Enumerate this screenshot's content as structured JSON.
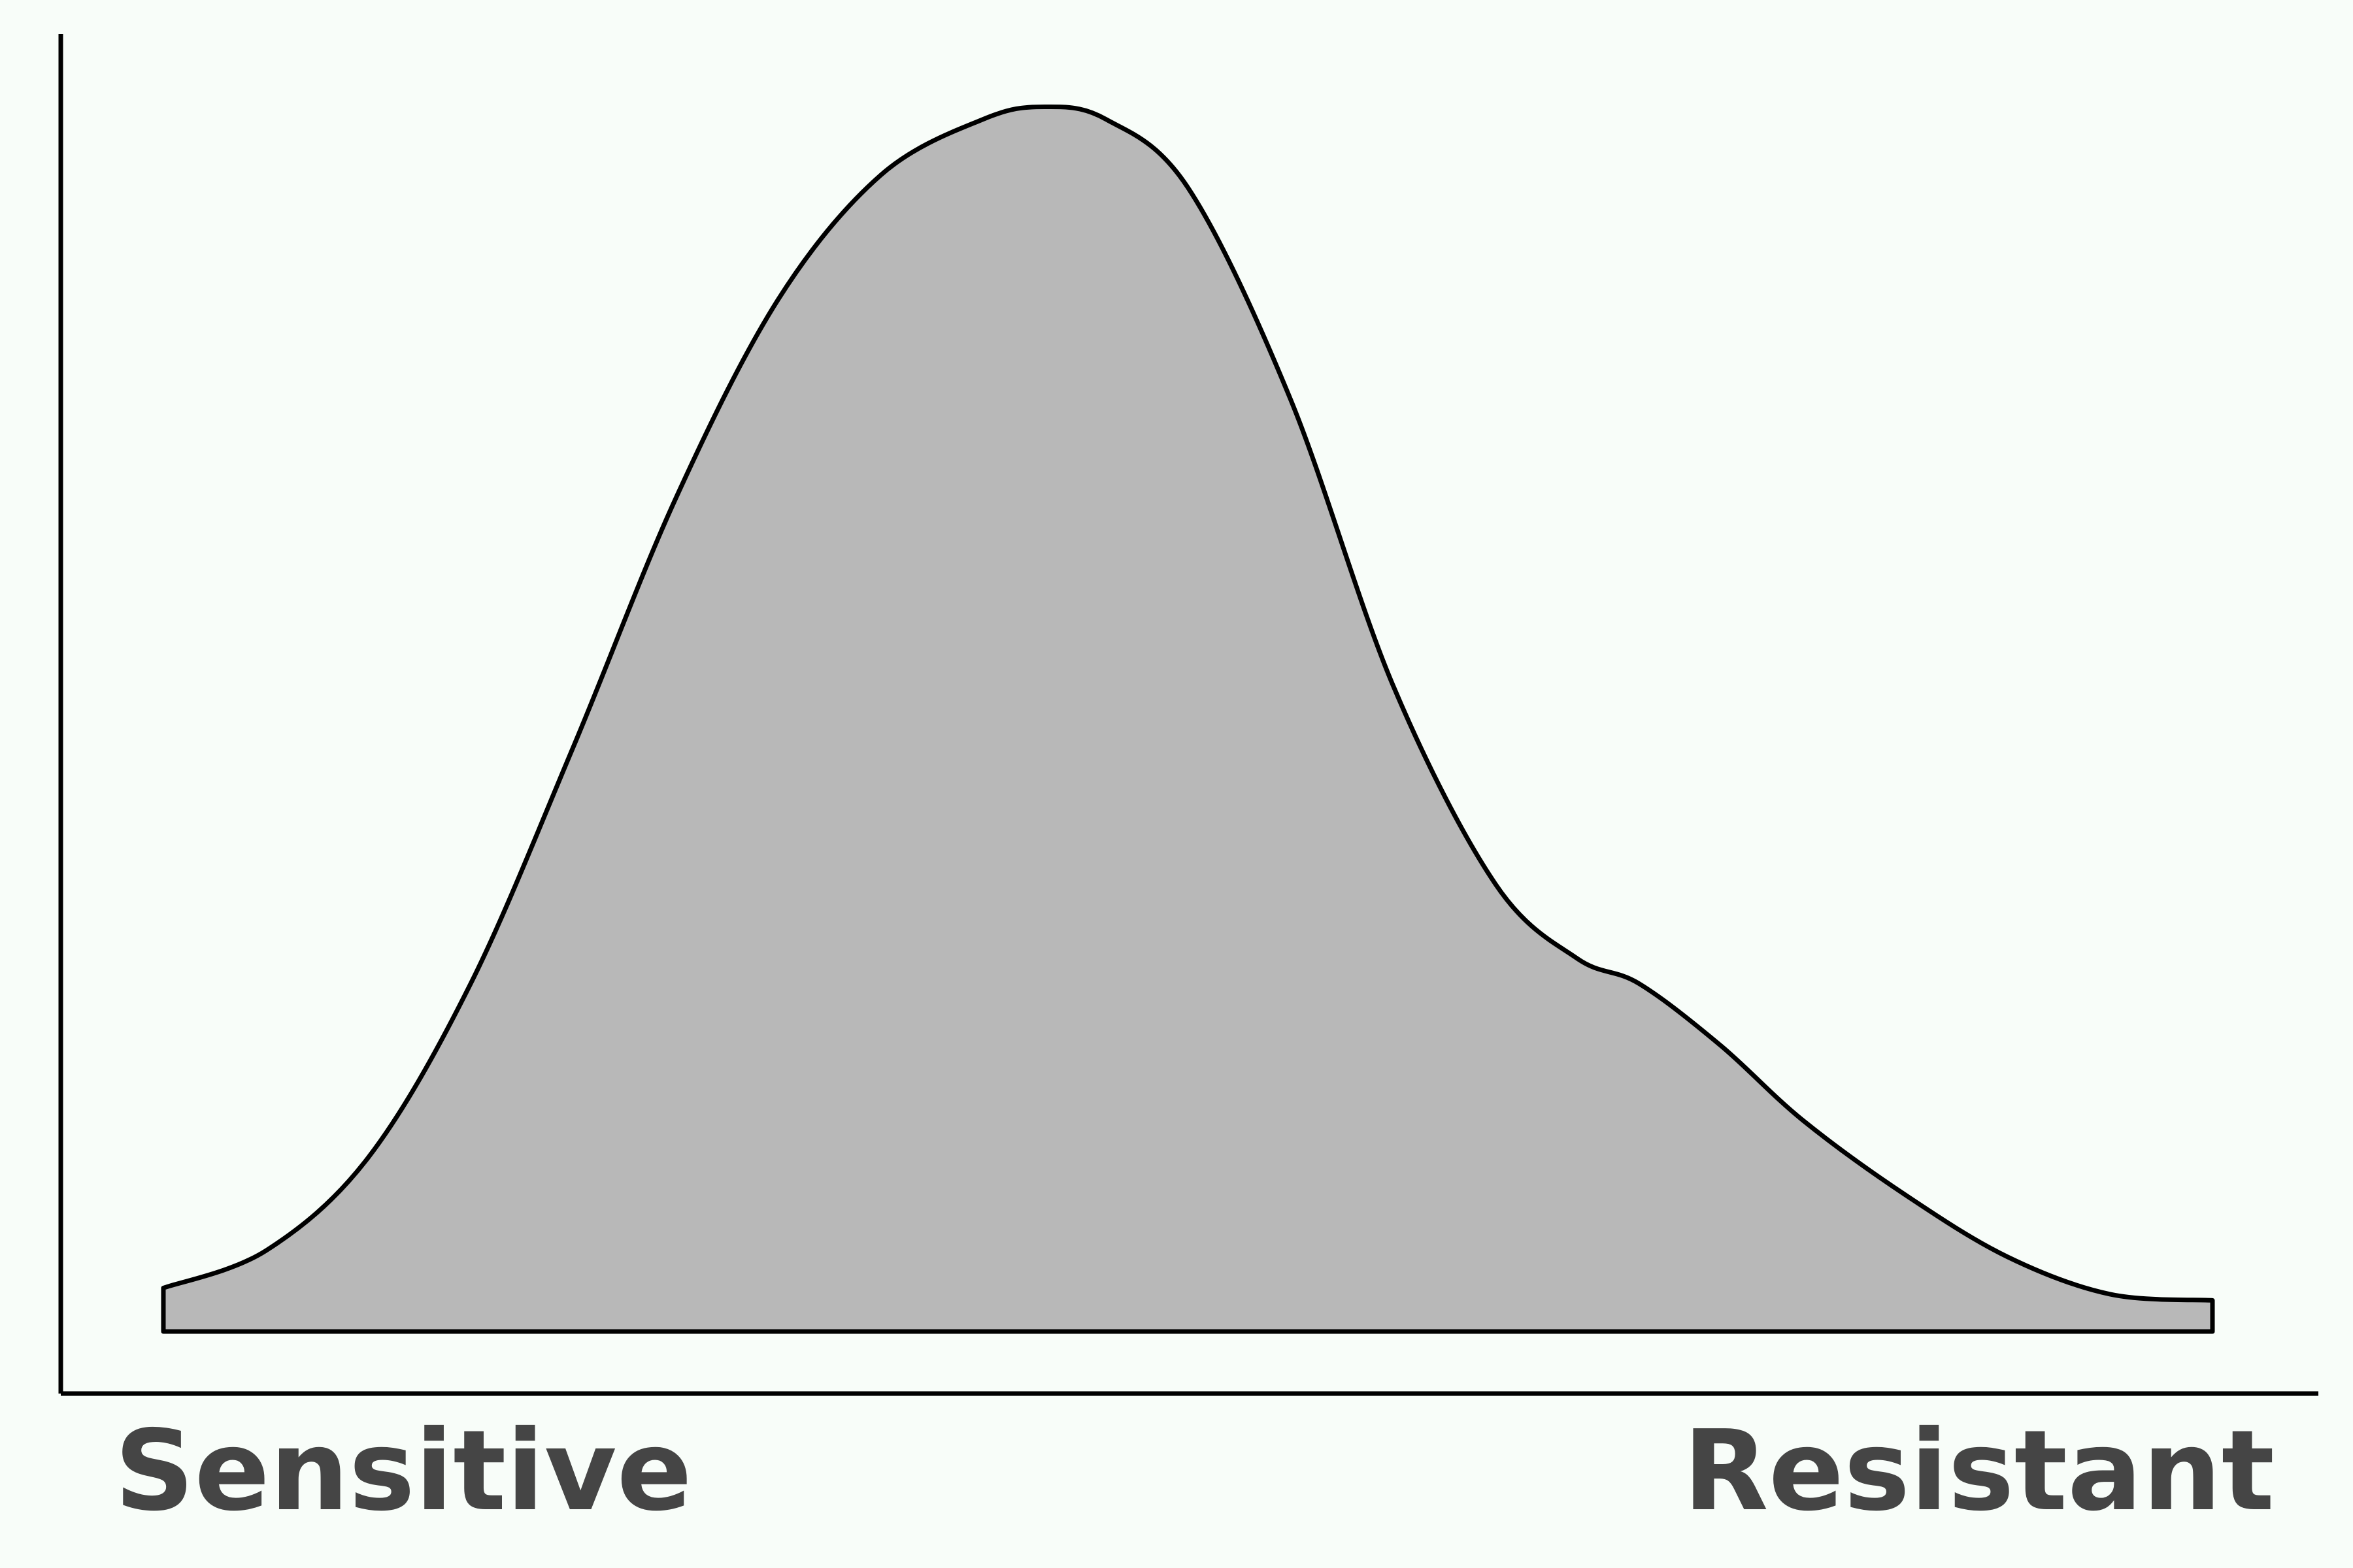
{
  "chart_data": {
    "type": "area",
    "title": "",
    "xlabel": "",
    "ylabel": "",
    "x_tick_labels": {
      "left": "Sensitive",
      "right": "Resistant"
    },
    "xlim": [
      0,
      1
    ],
    "ylim": [
      0,
      1
    ],
    "grid": false,
    "legend": "none",
    "series": [
      {
        "x": [
          0.0,
          0.05,
          0.1,
          0.15,
          0.2,
          0.25,
          0.3,
          0.35,
          0.4,
          0.43,
          0.46,
          0.5,
          0.55,
          0.6,
          0.65,
          0.69,
          0.72,
          0.76,
          0.8,
          0.85,
          0.9,
          0.95,
          1.0
        ],
        "y": [
          0.035,
          0.065,
          0.14,
          0.28,
          0.47,
          0.67,
          0.83,
          0.93,
          0.975,
          0.985,
          0.975,
          0.92,
          0.75,
          0.52,
          0.36,
          0.3,
          0.28,
          0.23,
          0.17,
          0.11,
          0.06,
          0.03,
          0.025
        ]
      }
    ],
    "colors": {
      "fill": "#b8b8b8",
      "stroke": "#000000",
      "axis": "#000000",
      "label": "#454545",
      "background": "#f8fdf9"
    }
  }
}
